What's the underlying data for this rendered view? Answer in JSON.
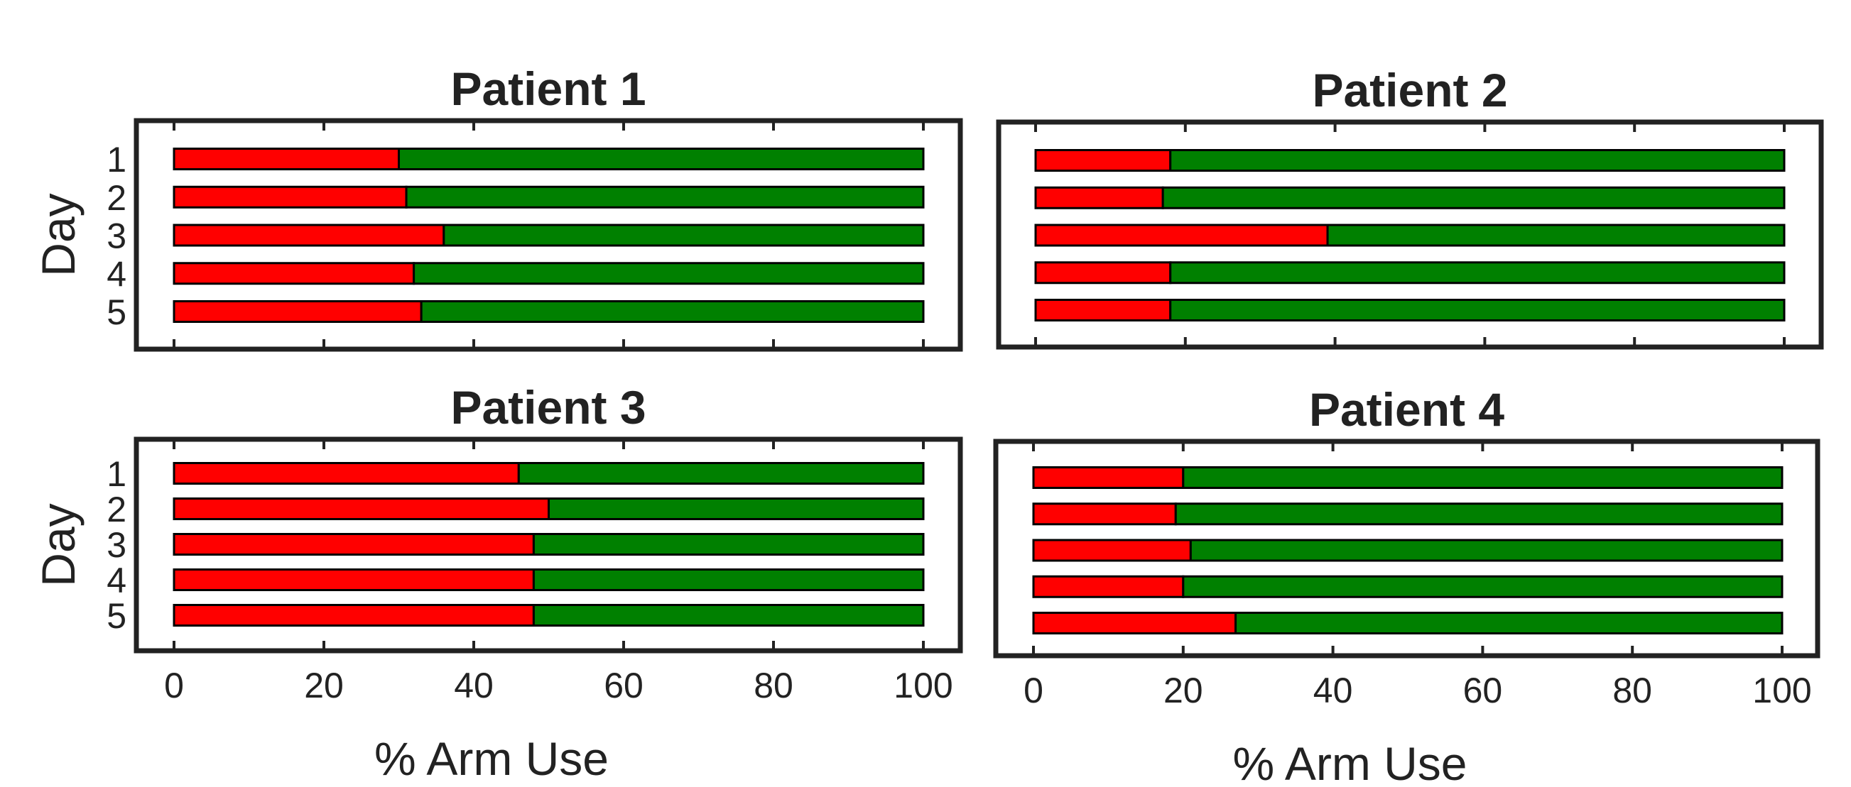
{
  "chart_data": {
    "type": "bar",
    "orientation": "horizontal",
    "stacked": true,
    "xlim": [
      0,
      100
    ],
    "xticks": [
      0,
      20,
      40,
      60,
      80,
      100
    ],
    "colors": {
      "first": "#ff0000",
      "second": "#008000",
      "frame": "#222222"
    },
    "panels": [
      {
        "title": "Patient 1",
        "ylabel": "Day",
        "xlabel": "",
        "categories": [
          "1",
          "2",
          "3",
          "4",
          "5"
        ],
        "values": [
          30,
          31,
          36,
          32,
          33
        ],
        "show_xticklabels": false
      },
      {
        "title": "Patient 2",
        "ylabel": "",
        "xlabel": "",
        "categories": [
          "",
          "",
          "",
          "",
          ""
        ],
        "values": [
          18,
          17,
          39,
          18,
          18
        ],
        "show_xticklabels": false
      },
      {
        "title": "Patient 3",
        "ylabel": "Day",
        "xlabel": "% Arm Use",
        "categories": [
          "1",
          "2",
          "3",
          "4",
          "5"
        ],
        "values": [
          46,
          50,
          48,
          48,
          48
        ],
        "show_xticklabels": true
      },
      {
        "title": "Patient 4",
        "ylabel": "",
        "xlabel": "% Arm Use",
        "categories": [
          "",
          "",
          "",
          "",
          ""
        ],
        "values": [
          20,
          19,
          21,
          20,
          27
        ],
        "show_xticklabels": true
      }
    ]
  }
}
